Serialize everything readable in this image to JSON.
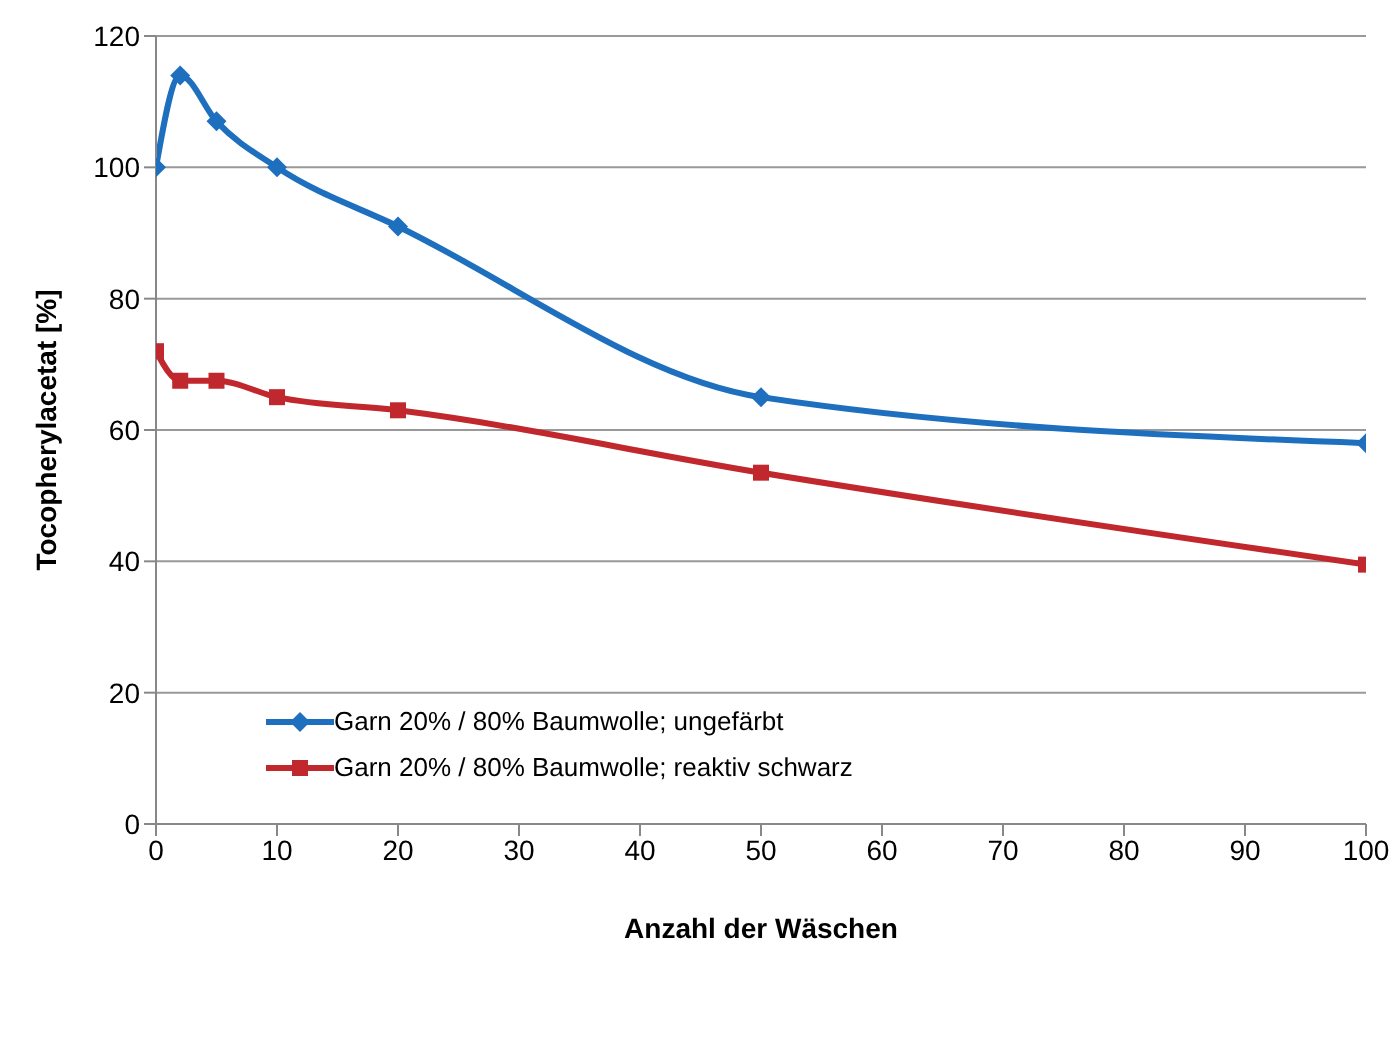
{
  "chart_data": {
    "type": "line",
    "xlabel": "Anzahl der Wäschen",
    "ylabel": "Tocopherylacetat [%]",
    "xlim": [
      0,
      100
    ],
    "xticks": [
      0,
      10,
      20,
      30,
      40,
      50,
      60,
      70,
      80,
      90,
      100
    ],
    "ylim": [
      0,
      120
    ],
    "yticks": [
      0,
      20,
      40,
      60,
      80,
      100,
      120
    ],
    "grid": "y",
    "legend": "bottom left",
    "x": [
      0,
      2,
      5,
      10,
      20,
      50,
      100
    ],
    "series": [
      {
        "name": "Garn 20% / 80% Baumwolle; ungefärbt",
        "color": "#1f6fbf",
        "marker": "diamond",
        "values": [
          100,
          114,
          107,
          100,
          91,
          65,
          58
        ]
      },
      {
        "name": "Garn 20% / 80% Baumwolle; reaktiv schwarz",
        "color": "#c0282d",
        "marker": "square",
        "values": [
          72,
          67.5,
          67.5,
          65,
          63,
          53.5,
          39.5
        ]
      }
    ]
  }
}
